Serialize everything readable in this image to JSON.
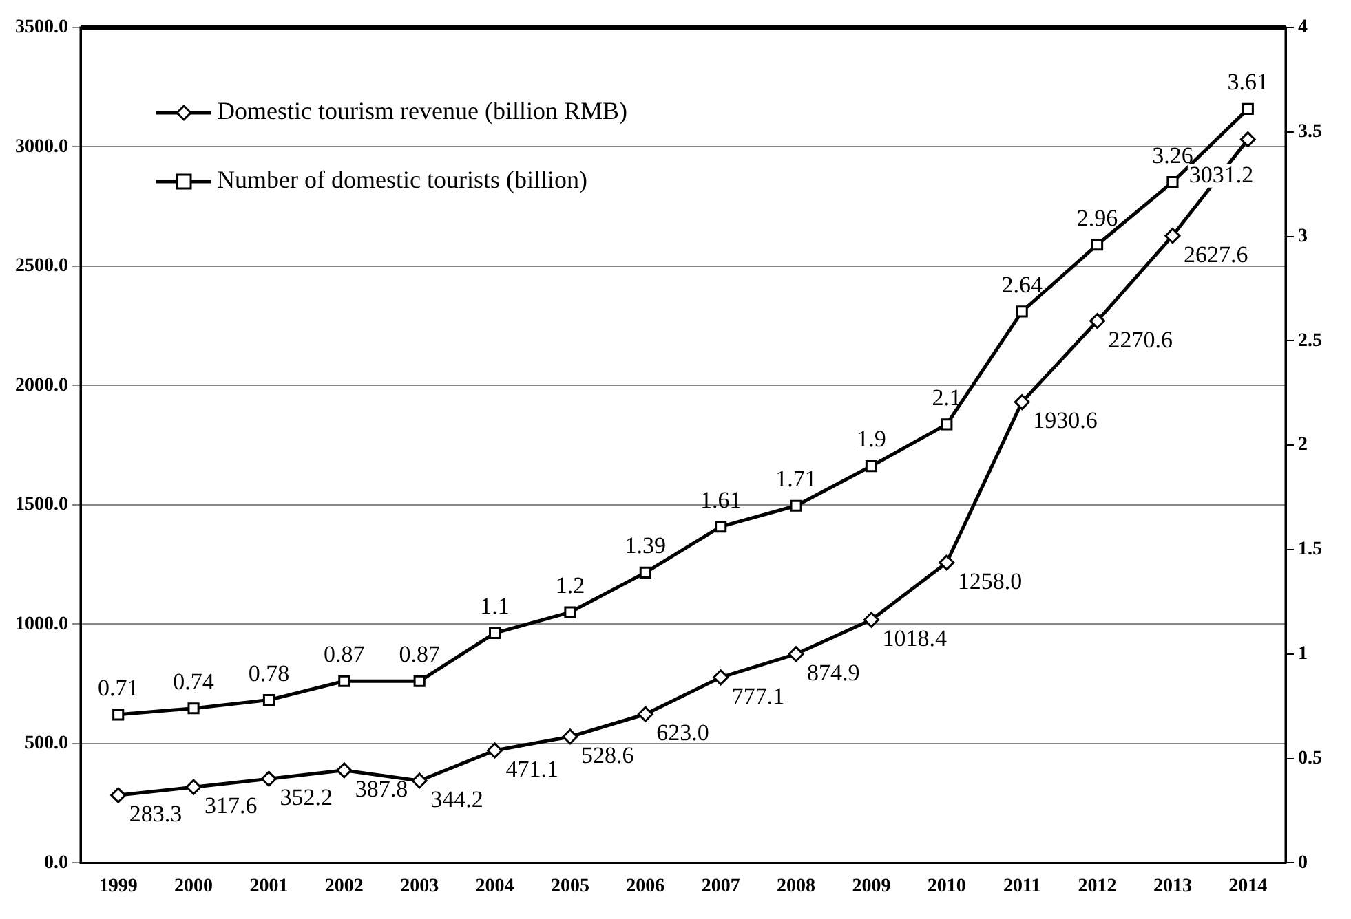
{
  "chart_data": {
    "type": "line",
    "categories": [
      "1999",
      "2000",
      "2001",
      "2002",
      "2003",
      "2004",
      "2005",
      "2006",
      "2007",
      "2008",
      "2009",
      "2010",
      "2011",
      "2012",
      "2013",
      "2014"
    ],
    "series": [
      {
        "name": "Domestic tourism revenue (billion RMB)",
        "color": "#000000",
        "marker": "diamond",
        "values": [
          283.3,
          317.6,
          352.2,
          387.8,
          344.2,
          471.1,
          528.6,
          623.0,
          777.1,
          874.9,
          1018.4,
          1258.0,
          1930.6,
          2270.6,
          2627.6,
          3031.2
        ],
        "value_labels": [
          "283.3",
          "317.6",
          "352.2",
          "387.8",
          "344.2",
          "471.1",
          "528.6",
          "623.0",
          "777.1",
          "874.9",
          "1018.4",
          "1258.0",
          "1930.6",
          "2270.6",
          "2627.6",
          "3031.2"
        ]
      },
      {
        "name": "Number of domestic tourists (billion)",
        "color": "#000000",
        "marker": "square",
        "axis": "y2",
        "values": [
          0.71,
          0.74,
          0.78,
          0.87,
          0.87,
          1.1,
          1.2,
          1.39,
          1.61,
          1.71,
          1.9,
          2.1,
          2.64,
          2.96,
          3.26,
          3.61
        ],
        "value_labels": [
          "0.71",
          "0.74",
          "0.78",
          "0.87",
          "0.87",
          "1.1",
          "1.2",
          "1.39",
          "1.61",
          "1.71",
          "1.9",
          "2.1",
          "2.64",
          "2.96",
          "3.26",
          "3.61"
        ]
      }
    ],
    "ylim": [
      0,
      3500
    ],
    "yticks": [
      {
        "value": 0,
        "label": "0.0"
      },
      {
        "value": 500,
        "label": "500.0"
      },
      {
        "value": 1000,
        "label": "1000.0"
      },
      {
        "value": 1500,
        "label": "1500.0"
      },
      {
        "value": 2000,
        "label": "2000.0"
      },
      {
        "value": 2500,
        "label": "2500.0"
      },
      {
        "value": 3000,
        "label": "3000.0"
      },
      {
        "value": 3500,
        "label": "3500.0"
      }
    ],
    "y2lim": [
      0,
      4
    ],
    "y2ticks": [
      0,
      0.5,
      1,
      1.5,
      2,
      2.5,
      3,
      3.5,
      4
    ],
    "grid": "y",
    "legend": "top left",
    "line_style": "solid"
  }
}
